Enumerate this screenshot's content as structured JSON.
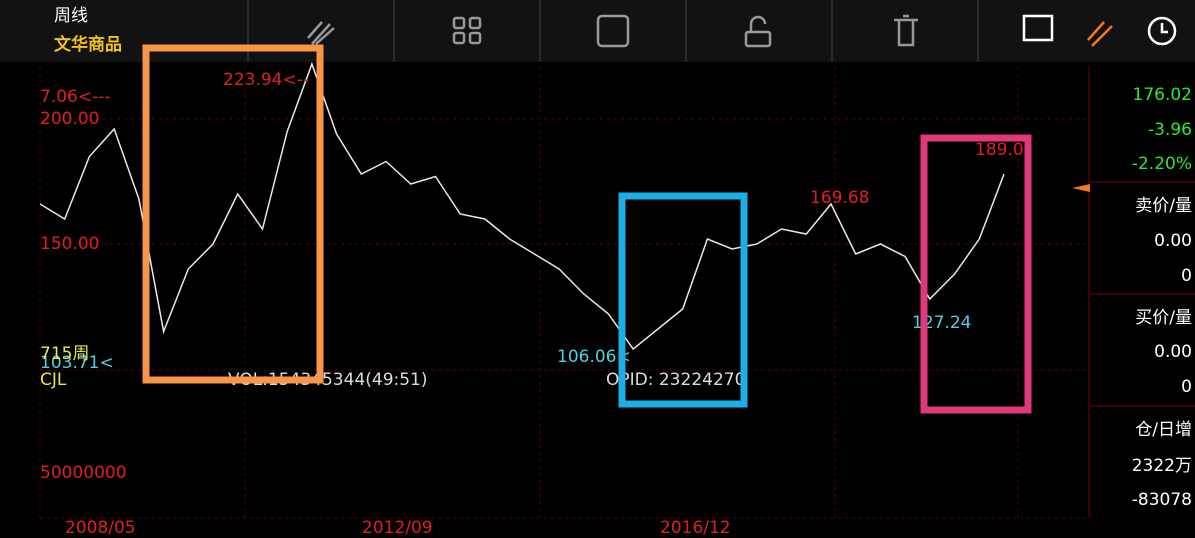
{
  "header": {
    "period": "周线",
    "name": "文华商品"
  },
  "chart": {
    "type": "line",
    "color": "#e8e8e8",
    "ylim": [
      99.6,
      220.8
    ],
    "yticks": [
      {
        "value": 200,
        "label": "200.00"
      },
      {
        "value": 150,
        "label": "150.00"
      }
    ],
    "values": [
      166,
      160,
      185,
      196,
      168,
      115,
      140,
      150,
      170,
      156,
      195,
      222,
      194,
      178,
      183,
      174,
      177,
      162,
      160,
      152,
      146,
      140,
      130,
      122,
      108,
      116,
      124,
      152,
      148,
      150,
      156,
      154,
      166,
      146,
      150,
      145,
      128,
      138,
      152,
      178
    ],
    "annotations": {
      "left_high": "7.06<---",
      "high": "223.94<--",
      "mid_high": "169.68",
      "recent_high": "189.0",
      "left_low": "103.71<",
      "mid_low": "106.06<",
      "recent_low": "127.24"
    }
  },
  "volume": {
    "period_count": "715周",
    "indicator": "CJL",
    "vol": "VOL:154345344(49:51)",
    "opid": "OPID: 23224270",
    "level": "50000000"
  },
  "dates": [
    "2008/05",
    "2012/09",
    "2016/12"
  ],
  "side": {
    "price": "176.02",
    "change": "-3.96",
    "pct": "-2.20%",
    "ask_label": "卖价/量",
    "ask_price": "0.00",
    "ask_vol": "0",
    "bid_label": "买价/量",
    "bid_price": "0.00",
    "bid_vol": "0",
    "oi_label": "仓/日增",
    "oi": "2322万",
    "oi_change": "-83078"
  }
}
